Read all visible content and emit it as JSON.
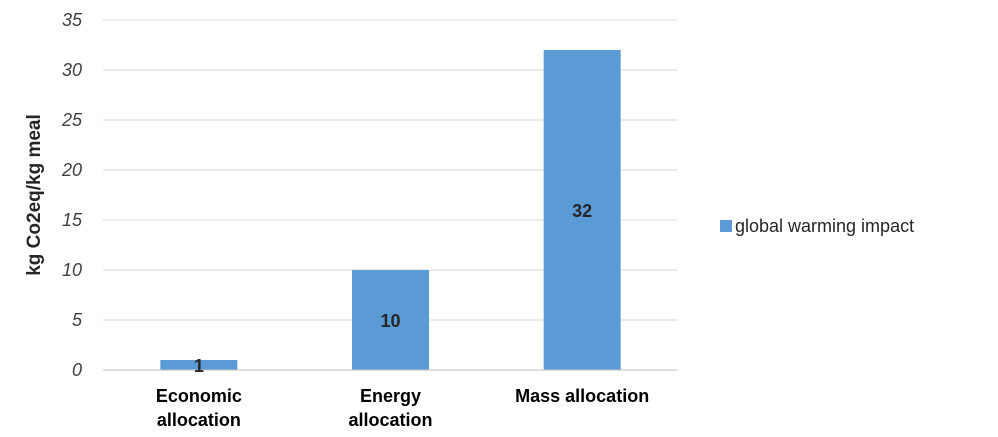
{
  "chart_data": {
    "type": "bar",
    "categories": [
      [
        "Economic",
        "allocation"
      ],
      [
        "Energy",
        "allocation"
      ],
      [
        "Mass allocation"
      ]
    ],
    "series": [
      {
        "name": "global warming impact",
        "values": [
          1,
          10,
          32
        ]
      }
    ],
    "data_labels": [
      "1",
      "10",
      "32"
    ],
    "ylabel": "kg Co2eq/kg meal",
    "xlabel": "",
    "ylim": [
      0,
      35
    ],
    "yticks": [
      "0",
      "5",
      "10",
      "15",
      "20",
      "25",
      "30",
      "35"
    ],
    "grid": true,
    "legend_position": "right",
    "colors": {
      "bar": "#5b9bd5",
      "grid": "#d9d9d9",
      "axis": "#bfbfbf"
    }
  }
}
